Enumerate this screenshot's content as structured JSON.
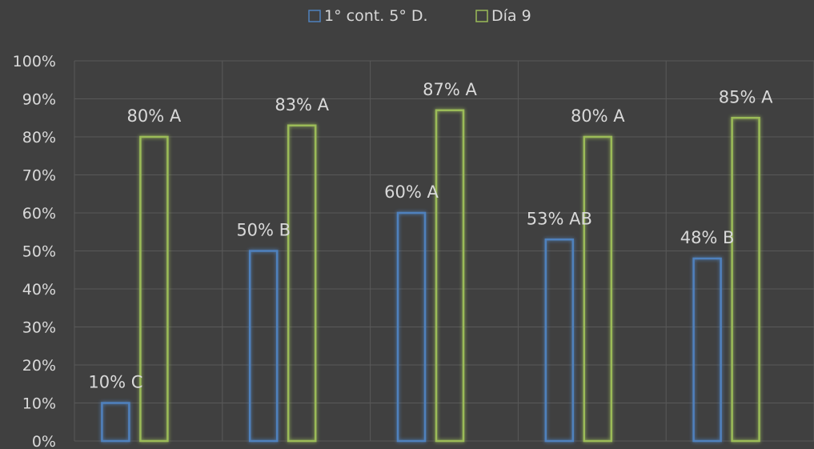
{
  "chart_data": {
    "type": "bar",
    "legend_position": "top-center",
    "grid": true,
    "ylim": [
      0,
      100
    ],
    "y_ticks": [
      0,
      10,
      20,
      30,
      40,
      50,
      60,
      70,
      80,
      90,
      100
    ],
    "y_tick_labels": [
      "0%",
      "10%",
      "20%",
      "30%",
      "40%",
      "50%",
      "60%",
      "70%",
      "80%",
      "90%",
      "100%"
    ],
    "categories": [
      "",
      "",
      "",
      "",
      ""
    ],
    "series": [
      {
        "name": "1° cont. 5° D.",
        "color": "#4f81bd",
        "values": [
          10,
          50,
          60,
          53,
          48
        ],
        "labels": [
          "10% C",
          "50% B",
          "60% A",
          "53% AB",
          "48% B"
        ]
      },
      {
        "name": "Día 9",
        "color": "#9bbb59",
        "values": [
          80,
          83,
          87,
          80,
          85
        ],
        "labels": [
          "80% A",
          "83% A",
          "87% A",
          "80% A",
          "85% A"
        ]
      }
    ]
  }
}
